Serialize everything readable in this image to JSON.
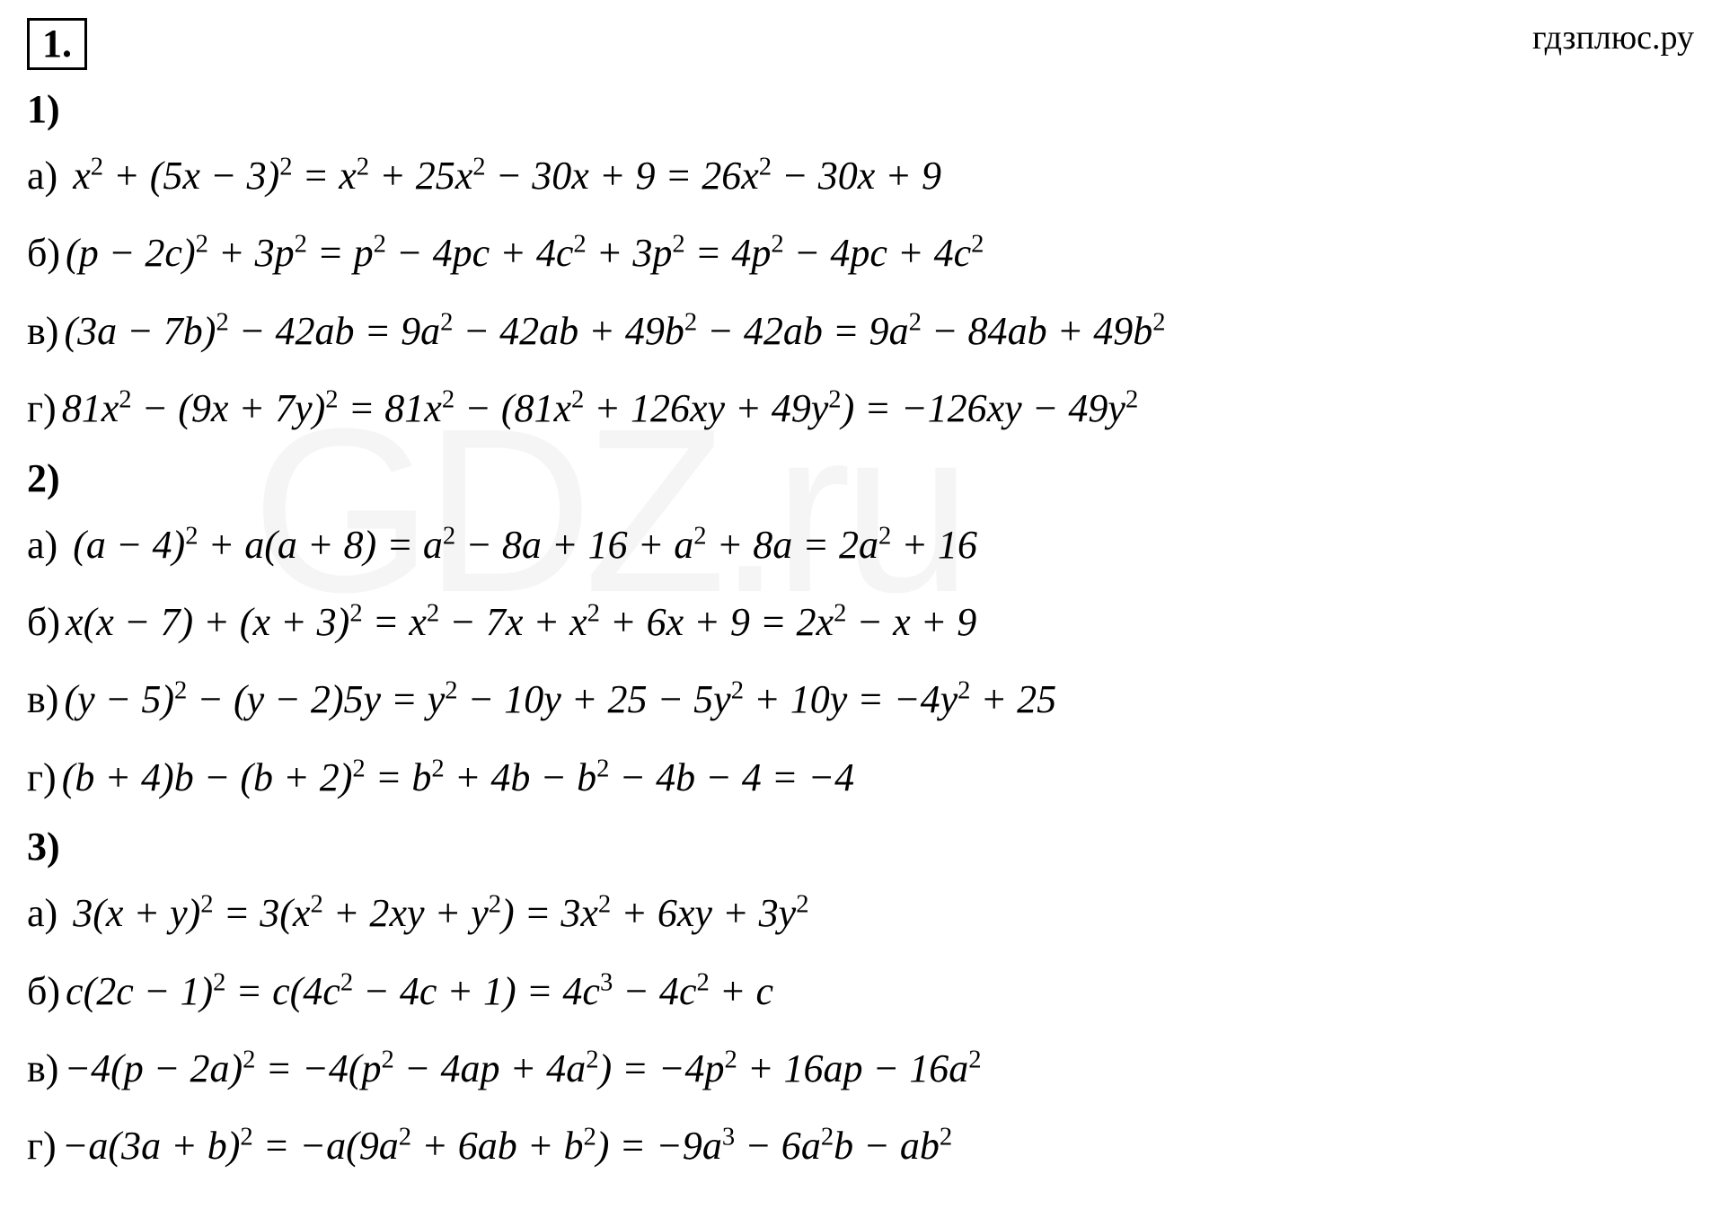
{
  "background_color": "#ffffff",
  "text_color": "#000000",
  "watermark_color": "rgba(200,200,200,0.18)",
  "font_family": "Cambria Math, Times New Roman, serif",
  "base_fontsize": 44,
  "problem_number": "1.",
  "site_watermark": "гдзплюс.ру",
  "bg_watermark": "GDZ.ru",
  "sections": [
    {
      "label": "1)",
      "items": [
        {
          "letter": "а)",
          "html": " <i>x</i><sup>2</sup> + (5<i>x</i> − 3)<sup>2</sup> = <i>x</i><sup>2</sup> + 25<i>x</i><sup>2</sup> − 30<i>x</i> + 9 = 26<i>x</i><sup>2</sup> − 30<i>x</i> + 9"
        },
        {
          "letter": "б)",
          "html": "(<i>p</i> − 2<i>c</i>)<sup>2</sup> + 3<i>p</i><sup>2</sup> = <i>p</i><sup>2</sup> − 4<i>pc</i> + 4<i>c</i><sup>2</sup> + 3<i>p</i><sup>2</sup> = 4<i>p</i><sup>2</sup> − 4<i>pc</i> + 4<i>c</i><sup>2</sup>"
        },
        {
          "letter": "в)",
          "html": "(3<i>a</i> − 7<i>b</i>)<sup>2</sup> − 42<i>ab</i> = 9<i>a</i><sup>2</sup> − 42<i>ab</i> + 49<i>b</i><sup>2</sup> − 42<i>ab</i> = 9<i>a</i><sup>2</sup> − 84<i>ab</i> + 49<i>b</i><sup>2</sup>"
        },
        {
          "letter": "г)",
          "html": "81<i>x</i><sup>2</sup> − (9<i>x</i> + 7<i>y</i>)<sup>2</sup> = 81<i>x</i><sup>2</sup> − (81<i>x</i><sup>2</sup> + 126<i>xy</i> + 49<i>y</i><sup>2</sup>) = −126<i>xy</i> − 49<i>y</i><sup>2</sup>"
        }
      ]
    },
    {
      "label": "2)",
      "items": [
        {
          "letter": "а)",
          "html": " (<i>a</i> − 4)<sup>2</sup> + <i>a</i>(<i>a</i> + 8) = <i>a</i><sup>2</sup> − 8<i>a</i> + 16 + <i>a</i><sup>2</sup> + 8<i>a</i> = 2<i>a</i><sup>2</sup> + 16"
        },
        {
          "letter": "б)",
          "html": "<i>x</i>(<i>x</i> − 7) + (<i>x</i> + 3)<sup>2</sup> = <i>x</i><sup>2</sup> − 7<i>x</i> + <i>x</i><sup>2</sup> + 6<i>x</i> + 9 = 2<i>x</i><sup>2</sup> − <i>x</i> + 9"
        },
        {
          "letter": "в)",
          "html": "(<i>y</i> − 5)<sup>2</sup> − (<i>y</i> − 2)5<i>y</i> = <i>y</i><sup>2</sup> − 10<i>y</i> + 25 − 5<i>y</i><sup>2</sup> + 10<i>y</i> = −4<i>y</i><sup>2</sup> + 25"
        },
        {
          "letter": "г)",
          "html": "(<i>b</i> + 4)<i>b</i> − (<i>b</i> + 2)<sup>2</sup> = <i>b</i><sup>2</sup> + 4<i>b</i> − <i>b</i><sup>2</sup> − 4<i>b</i> − 4 = −4"
        }
      ]
    },
    {
      "label": "3)",
      "items": [
        {
          "letter": "а)",
          "html": " 3(<i>x</i> + <i>y</i>)<sup>2</sup> = 3(<i>x</i><sup>2</sup> + 2<i>xy</i> + <i>y</i><sup>2</sup>) = 3<i>x</i><sup>2</sup> + 6<i>xy</i> + 3<i>y</i><sup>2</sup>"
        },
        {
          "letter": "б)",
          "html": "<i>c</i>(2<i>c</i> − 1)<sup>2</sup> = <i>c</i>(4<i>c</i><sup>2</sup> − 4<i>c</i> + 1) = 4<i>c</i><sup>3</sup> − 4<i>c</i><sup>2</sup> + <i>c</i>"
        },
        {
          "letter": "в)",
          "html": "−4(<i>p</i> − 2<i>a</i>)<sup>2</sup> = −4(<i>p</i><sup>2</sup> − 4<i>ap</i> + 4<i>a</i><sup>2</sup>) = −4<i>p</i><sup>2</sup> + 16<i>ap</i> − 16<i>a</i><sup>2</sup>"
        },
        {
          "letter": "г)",
          "html": "−<i>a</i>(3<i>a</i> + <i>b</i>)<sup>2</sup> = −<i>a</i>(9<i>a</i><sup>2</sup> + 6<i>ab</i> + <i>b</i><sup>2</sup>) = −9<i>a</i><sup>3</sup> − 6<i>a</i><sup>2</sup><i>b</i> − <i>ab</i><sup>2</sup>"
        }
      ]
    }
  ]
}
